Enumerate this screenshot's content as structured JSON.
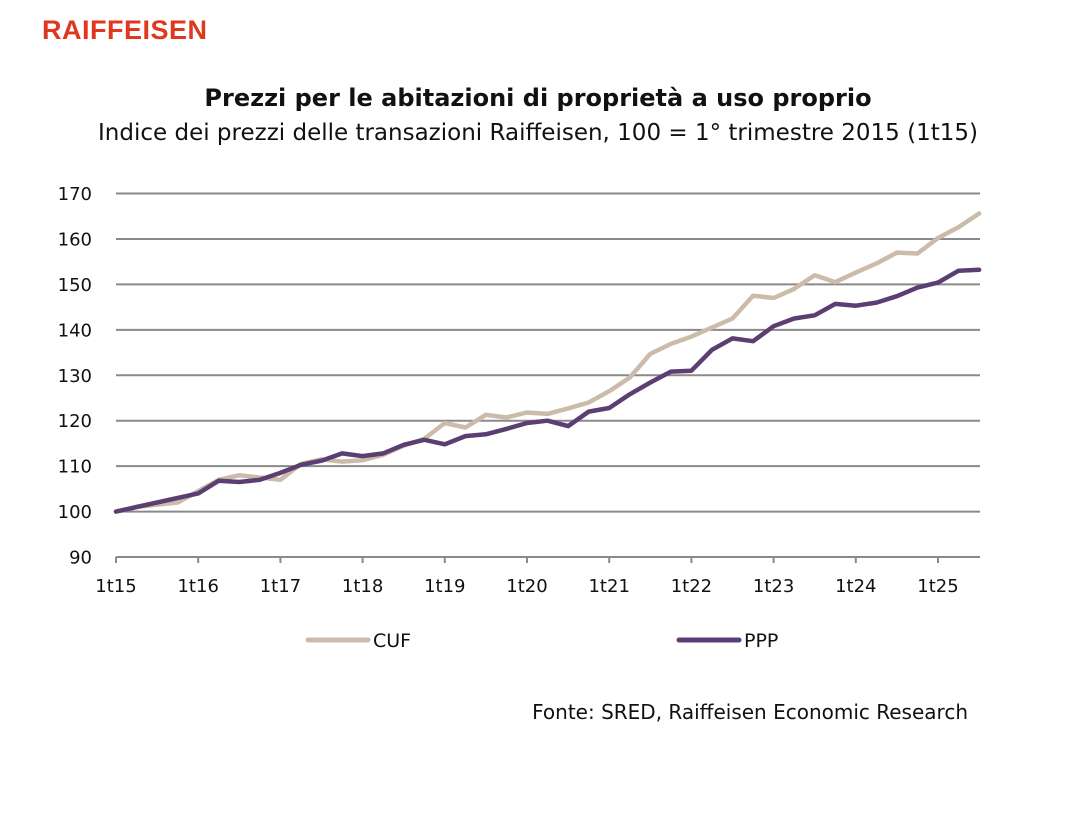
{
  "brand": {
    "logo_text": "RAIFFEISEN",
    "logo_color": "#e0371f"
  },
  "source": "Fonte: SRED, Raiffeisen Economic Research",
  "chart_data": {
    "type": "line",
    "title": "Prezzi per le abitazioni di proprietà a uso proprio",
    "subtitle": "Indice dei prezzi delle transazioni Raiffeisen, 100 = 1° trimestre 2015 (1t15)",
    "xlabel": "",
    "ylabel": "",
    "ylim": [
      90,
      170
    ],
    "yticks": [
      90,
      100,
      110,
      120,
      130,
      140,
      150,
      160,
      170
    ],
    "x_tick_labels": [
      "1t15",
      "1t16",
      "1t17",
      "1t18",
      "1t19",
      "1t20",
      "1t21",
      "1t22",
      "1t23",
      "1t24",
      "1t25"
    ],
    "x": [
      "1t15",
      "2t15",
      "3t15",
      "4t15",
      "1t16",
      "2t16",
      "3t16",
      "4t16",
      "1t17",
      "2t17",
      "3t17",
      "4t17",
      "1t18",
      "2t18",
      "3t18",
      "4t18",
      "1t19",
      "2t19",
      "3t19",
      "4t19",
      "1t20",
      "2t20",
      "3t20",
      "4t20",
      "1t21",
      "2t21",
      "3t21",
      "4t21",
      "1t22",
      "2t22",
      "3t22",
      "4t22",
      "1t23",
      "2t23",
      "3t23",
      "4t23",
      "1t24",
      "2t24",
      "3t24",
      "4t24",
      "1t25",
      "2t25",
      "3t25"
    ],
    "grid": true,
    "legend_position": "bottom",
    "series": [
      {
        "name": "CUF",
        "color": "#cbbcaa",
        "values": [
          100,
          101,
          101.5,
          102,
          104.5,
          107,
          108,
          107.5,
          107,
          110.5,
          111.5,
          111,
          111.3,
          112.5,
          114.5,
          116,
          119.5,
          118.5,
          121.3,
          120.7,
          121.8,
          121.5,
          122.7,
          124,
          126.5,
          129.5,
          134.7,
          136.9,
          138.5,
          140.5,
          142.5,
          147.5,
          147,
          149,
          152,
          150.5,
          152.6,
          154.6,
          157,
          156.8,
          160.2,
          162.6,
          165.6
        ]
      },
      {
        "name": "PPP",
        "color": "#5c3f72",
        "values": [
          100,
          101,
          102,
          103,
          104,
          106.8,
          106.5,
          107,
          108.5,
          110.3,
          111.2,
          112.8,
          112.2,
          112.8,
          114.7,
          115.8,
          114.8,
          116.6,
          117,
          118.2,
          119.5,
          120,
          118.8,
          122,
          122.8,
          125.8,
          128.4,
          130.8,
          131,
          135.6,
          138.1,
          137.5,
          140.8,
          142.5,
          143.2,
          145.7,
          145.3,
          146,
          147.4,
          149.3,
          150.4,
          153,
          153.2
        ]
      }
    ]
  }
}
